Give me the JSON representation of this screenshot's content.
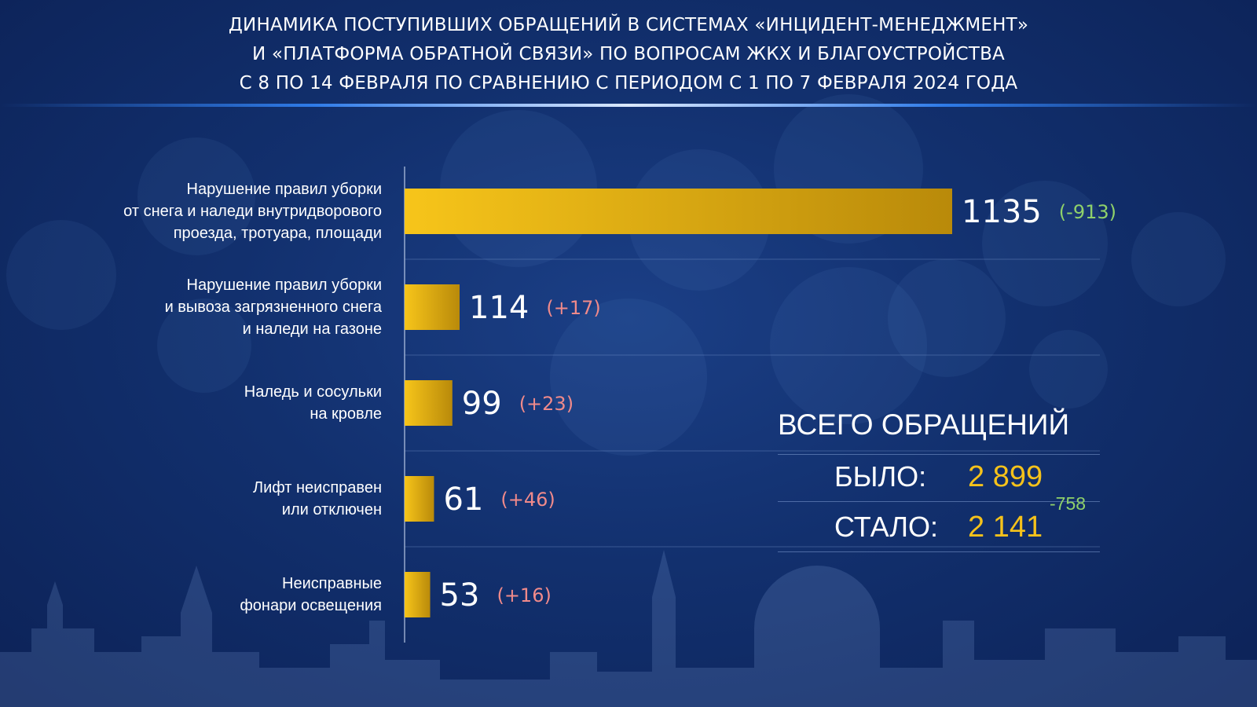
{
  "title": {
    "lines": [
      "ДИНАМИКА ПОСТУПИВШИХ ОБРАЩЕНИЙ В СИСТЕМАХ «ИНЦИДЕНТ-МЕНЕДЖМЕНТ»",
      "И «ПЛАТФОРМА ОБРАТНОЙ СВЯЗИ» ПО ВОПРОСАМ ЖКХ И БЛАГОУСТРОЙСТВА",
      "С 8 ПО 14 ФЕВРАЛЯ ПО СРАВНЕНИЮ С ПЕРИОДОМ С 1 ПО 7 ФЕВРАЛЯ 2024 ГОДА"
    ]
  },
  "chart_data": {
    "type": "bar",
    "orientation": "horizontal",
    "xlim": [
      0,
      1135
    ],
    "grid": false,
    "categories": [
      [
        "Нарушение правил уборки",
        "от снега и наледи внутридворового",
        "проезда, тротуара, площади"
      ],
      [
        "Нарушение правил уборки",
        "и вывоза загрязненного снега",
        "и наледи на газоне"
      ],
      [
        "Наледь и сосульки",
        "на кровле"
      ],
      [
        "Лифт неисправен",
        "или отключен"
      ],
      [
        "Неисправные",
        "фонари освещения"
      ]
    ],
    "values": [
      1135,
      114,
      99,
      61,
      53
    ],
    "value_labels": [
      "1135",
      "114",
      "99",
      "61",
      "53"
    ],
    "changes": [
      "(-913)",
      "(+17)",
      "(+23)",
      "(+46)",
      "(+16)"
    ]
  },
  "totals": {
    "title": "ВСЕГО ОБРАЩЕНИЙ",
    "before_label": "БЫЛО:",
    "before_value": "2 899",
    "after_label": "СТАЛО:",
    "after_value": "2 141",
    "change": "-758"
  },
  "colors": {
    "bar_start": "#f7c51a",
    "bar_end": "#b98a0a",
    "increase": "#f08a8a",
    "decrease": "#8fd16a",
    "accent": "#f5c21b",
    "background": "#12306e"
  }
}
